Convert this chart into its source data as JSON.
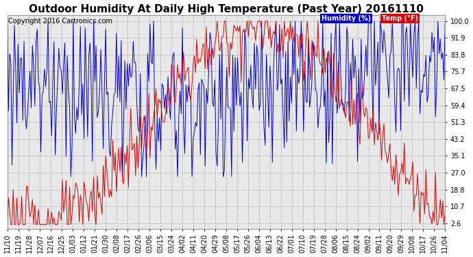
{
  "title": "Outdoor Humidity At Daily High Temperature (Past Year) 20161110",
  "copyright": "Copyright 2016 Cartronics.com",
  "legend_humidity": "Humidity (%)",
  "legend_temp": "Temp (°F)",
  "y_right_ticks": [
    2.6,
    10.7,
    18.8,
    27.0,
    35.1,
    43.2,
    51.3,
    59.4,
    67.5,
    75.7,
    83.8,
    91.9,
    100.0
  ],
  "x_tick_labels": [
    "11/10",
    "11/19",
    "11/28",
    "12/07",
    "12/16",
    "12/25",
    "01/03",
    "01/12",
    "01/21",
    "01/30",
    "02/08",
    "02/17",
    "02/26",
    "03/06",
    "03/15",
    "03/24",
    "04/02",
    "04/11",
    "04/20",
    "04/29",
    "05/08",
    "05/17",
    "05/26",
    "06/04",
    "06/13",
    "06/22",
    "07/01",
    "07/10",
    "07/19",
    "07/28",
    "08/06",
    "08/15",
    "08/24",
    "09/02",
    "09/11",
    "09/20",
    "09/29",
    "10/08",
    "10/17",
    "10/26",
    "11/04"
  ],
  "background_color": "#ffffff",
  "plot_bg_color": "#e8e8e8",
  "grid_color": "#aaaaaa",
  "humidity_color": "#0000cc",
  "temp_color": "#dd0000",
  "title_fontsize": 11,
  "copyright_fontsize": 7,
  "tick_fontsize": 7
}
